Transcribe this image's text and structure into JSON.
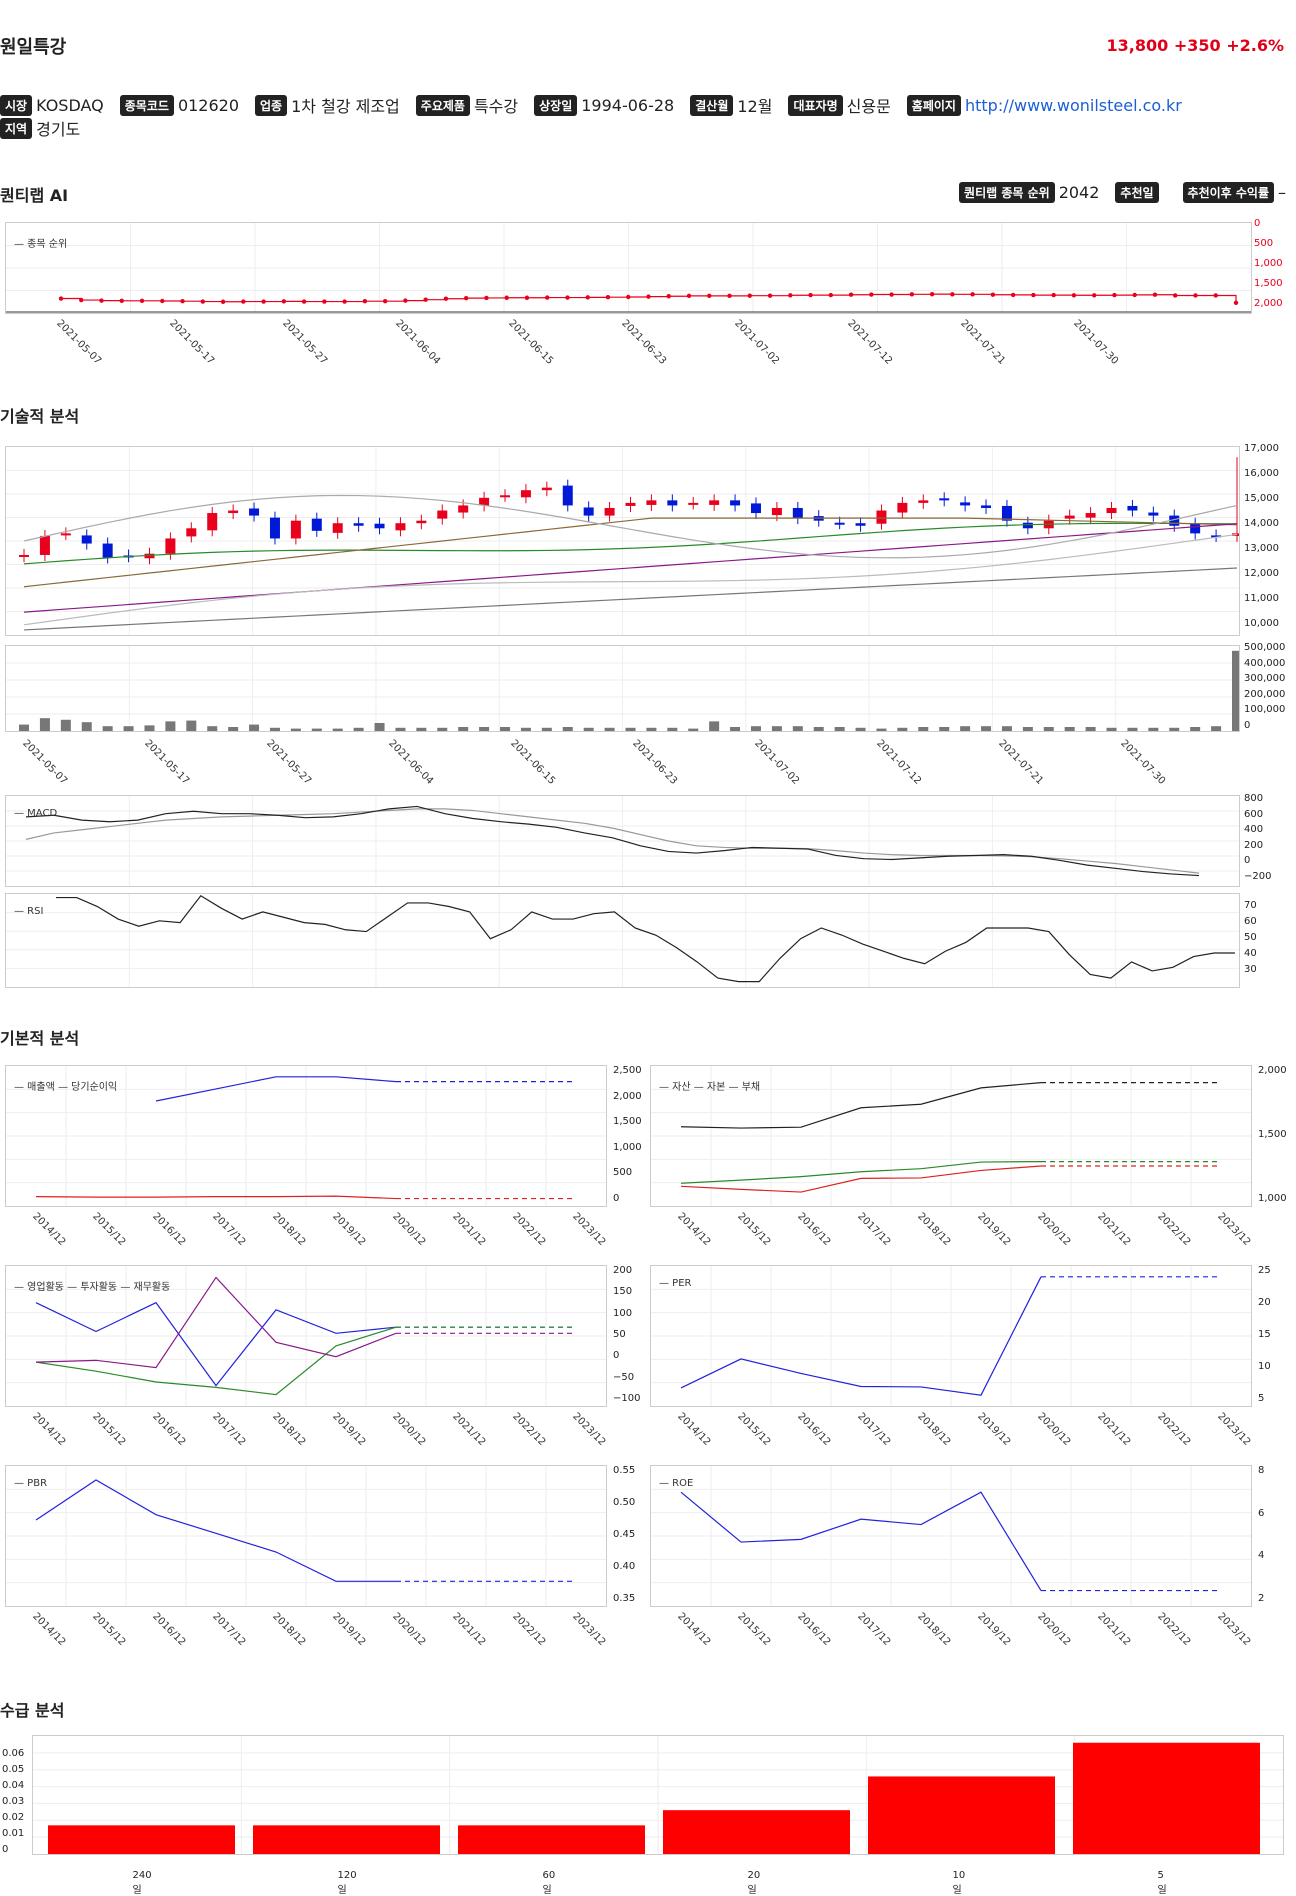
{
  "header": {
    "company": "원일특강",
    "price": "13,800",
    "change": "+350",
    "change_pct": "+2.6%"
  },
  "info": [
    {
      "label": "시장",
      "value": "KOSDAQ"
    },
    {
      "label": "종목코드",
      "value": "012620"
    },
    {
      "label": "업종",
      "value": "1차 철강 제조업"
    },
    {
      "label": "주요제품",
      "value": "특수강"
    },
    {
      "label": "상장일",
      "value": "1994-06-28"
    },
    {
      "label": "결산월",
      "value": "12월"
    },
    {
      "label": "대표자명",
      "value": "신용문"
    },
    {
      "label": "홈페이지",
      "value": "http://www.wonilsteel.co.kr"
    },
    {
      "label": "지역",
      "value": "경기도"
    }
  ],
  "sections": {
    "ai": "퀀티랩 AI",
    "technical": "기술적 분석",
    "fundamental": "기본적 분석",
    "supply": "수급 분석"
  },
  "ai": {
    "rank_label": "퀀티랩 종목 순위",
    "rank_value": "2042",
    "recommend_label": "추천일",
    "return_label": "추천이후 수익률",
    "return_value": "–",
    "legend": "종목 순위",
    "y_ticks": [
      "0",
      "500",
      "1,000",
      "1,500",
      "2,000"
    ],
    "x_ticks": [
      "2021-05-07",
      "2021-05-17",
      "2021-05-27",
      "2021-06-04",
      "2021-06-15",
      "2021-06-23",
      "2021-07-02",
      "2021-07-12",
      "2021-07-21",
      "2021-07-30"
    ]
  },
  "technical": {
    "price_ticks": [
      "17,000",
      "16,000",
      "15,000",
      "14,000",
      "13,000",
      "12,000",
      "11,000",
      "10,000"
    ],
    "volume_ticks": [
      "500,000",
      "400,000",
      "300,000",
      "200,000",
      "100,000",
      "0"
    ],
    "x_ticks": [
      "2021-05-07",
      "2021-05-17",
      "2021-05-27",
      "2021-06-04",
      "2021-06-15",
      "2021-06-23",
      "2021-07-02",
      "2021-07-12",
      "2021-07-21",
      "2021-07-30"
    ],
    "macd_legend": "MACD",
    "macd_ticks": [
      "800",
      "600",
      "400",
      "200",
      "0",
      "−200"
    ],
    "rsi_legend": "RSI",
    "rsi_ticks": [
      "70",
      "60",
      "50",
      "40",
      "30"
    ]
  },
  "fundamental": {
    "years": [
      "2014/12",
      "2015/12",
      "2016/12",
      "2017/12",
      "2018/12",
      "2019/12",
      "2020/12",
      "2021/12",
      "2022/12",
      "2023/12"
    ],
    "charts": [
      {
        "legend": [
          "매출액",
          "당기순이익"
        ],
        "ticks": [
          "2,500",
          "2,000",
          "1,500",
          "1,000",
          "500",
          "0"
        ]
      },
      {
        "legend": [
          "자산",
          "자본",
          "부채"
        ],
        "ticks": [
          "2,000",
          "1,500",
          "1,000"
        ]
      },
      {
        "legend": [
          "영업활동",
          "투자활동",
          "재무활동"
        ],
        "ticks": [
          "200",
          "150",
          "100",
          "50",
          "0",
          "−50",
          "−100"
        ]
      },
      {
        "legend": [
          "PER"
        ],
        "ticks": [
          "25",
          "20",
          "15",
          "10",
          "5"
        ]
      },
      {
        "legend": [
          "PBR"
        ],
        "ticks": [
          "0.55",
          "0.50",
          "0.45",
          "0.40",
          "0.35"
        ]
      },
      {
        "legend": [
          "ROE"
        ],
        "ticks": [
          "8",
          "6",
          "4",
          "2"
        ]
      }
    ]
  },
  "supply": {
    "y_ticks": [
      "0.06",
      "0.05",
      "0.04",
      "0.03",
      "0.02",
      "0.01",
      "0"
    ],
    "categories": [
      "240일",
      "120일",
      "60일",
      "20일",
      "10일",
      "5일"
    ],
    "values": [
      0.017,
      0.017,
      0.017,
      0.026,
      0.046,
      0.066
    ]
  },
  "colors": {
    "up": "#e8001c",
    "down": "#0019d6",
    "accent": "#e0001a"
  },
  "chart_data": [
    {
      "type": "line",
      "series": [
        {
          "name": "종목 순위",
          "values": [
            1930,
            1970,
            1985,
            1990,
            1990,
            1995,
            2000,
            2010,
            2015,
            2010,
            2010,
            2005,
            2010,
            2010,
            2010,
            2000,
            2000,
            1985,
            1960,
            1935,
            1920,
            1915,
            1910,
            1910,
            1905,
            1905,
            1900,
            1895,
            1890,
            1880,
            1870,
            1860,
            1860,
            1860,
            1855,
            1855,
            1845,
            1840,
            1840,
            1830,
            1825,
            1825,
            1820,
            1815,
            1820,
            1820,
            1830,
            1835,
            1840,
            1840,
            1845,
            1845,
            1840,
            1835,
            1830,
            1850,
            1850,
            1850,
            2042
          ]
        }
      ],
      "x_ticks": [
        "2021-05-07",
        "2021-07-30"
      ],
      "ylim": [
        0,
        2100
      ]
    },
    {
      "type": "bar",
      "categories": [
        "240일",
        "120일",
        "60일",
        "20일",
        "10일",
        "5일"
      ],
      "values": [
        0.017,
        0.017,
        0.017,
        0.026,
        0.046,
        0.066
      ]
    }
  ]
}
